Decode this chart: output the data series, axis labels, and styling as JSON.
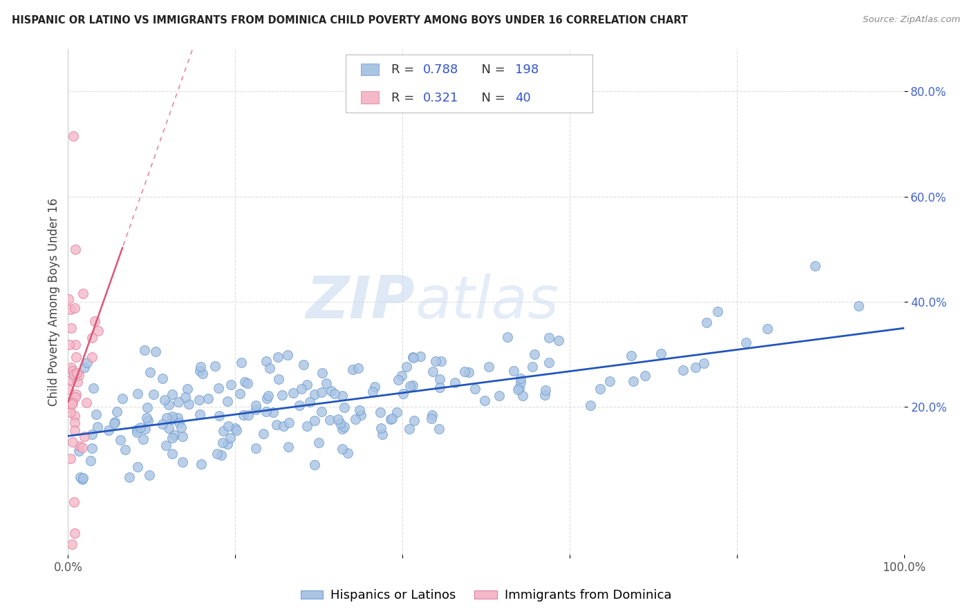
{
  "title": "HISPANIC OR LATINO VS IMMIGRANTS FROM DOMINICA CHILD POVERTY AMONG BOYS UNDER 16 CORRELATION CHART",
  "source": "Source: ZipAtlas.com",
  "ylabel": "Child Poverty Among Boys Under 16",
  "xlim": [
    0,
    1.0
  ],
  "ylim": [
    -0.08,
    0.88
  ],
  "xticks": [
    0.0,
    0.2,
    0.4,
    0.6,
    0.8,
    1.0
  ],
  "xticklabels": [
    "0.0%",
    "",
    "",
    "",
    "",
    "100.0%"
  ],
  "yticks": [
    0.2,
    0.4,
    0.6,
    0.8
  ],
  "yticklabels": [
    "20.0%",
    "40.0%",
    "60.0%",
    "80.0%"
  ],
  "watermark_zip": "ZIP",
  "watermark_atlas": "atlas",
  "series1_color": "#aac4e4",
  "series1_edge": "#6699cc",
  "series2_color": "#f4b8c8",
  "series2_edge": "#dd7799",
  "trend1_color": "#2255bb",
  "trend2_color": "#dd5577",
  "R1": 0.788,
  "N1": 198,
  "R2": 0.321,
  "N2": 40,
  "legend_label1": "Hispanics or Latinos",
  "legend_label2": "Immigrants from Dominica",
  "series1_intercept": 0.145,
  "series1_slope": 0.205,
  "series2_intercept": 0.21,
  "series2_slope": 4.5,
  "grid_color": "#dddddd",
  "title_color": "#222222",
  "source_color": "#888888",
  "ylabel_color": "#444444",
  "ytick_color": "#4466cc",
  "xtick_color": "#555555"
}
